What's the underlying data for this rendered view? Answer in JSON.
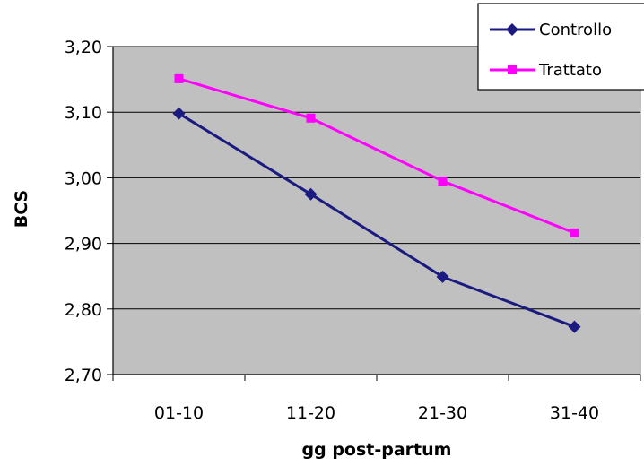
{
  "chart_data": {
    "type": "line",
    "categories": [
      "01-10",
      "11-20",
      "21-30",
      "31-40"
    ],
    "xlabel": "gg post-partum",
    "ylabel": "BCS",
    "ylim": [
      2.7,
      3.2
    ],
    "yticks": [
      "2,70",
      "2,80",
      "2,90",
      "3,00",
      "3,10",
      "3,20"
    ],
    "grid": true,
    "plot_background": "#c0c0c0",
    "legend_position": "top-right",
    "series": [
      {
        "name": "Controllo",
        "values": [
          3.098,
          2.975,
          2.849,
          2.773
        ],
        "color": "#1a1a80",
        "marker": "diamond"
      },
      {
        "name": "Trattato",
        "values": [
          3.151,
          3.091,
          2.995,
          2.916
        ],
        "color": "#ff00ff",
        "marker": "square"
      }
    ]
  }
}
